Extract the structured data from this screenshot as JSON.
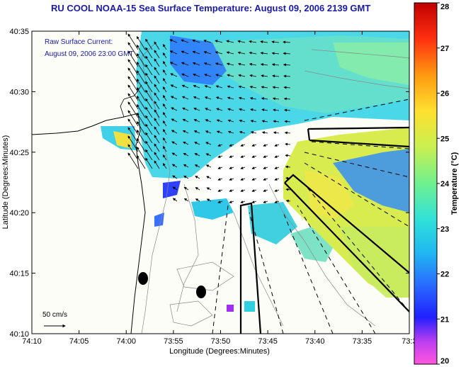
{
  "title": "RU COOL  NOAA-15  Sea Surface Temperature:  August 09, 2006 2139 GMT",
  "current_legend": {
    "line1": "Raw Surface Current:",
    "line2": "August 09, 2006 23:00 GMT"
  },
  "scale_label": "50 cm/s",
  "x_axis": {
    "label": "Longitude (Degrees:Minutes)",
    "ticks": [
      "74:10",
      "74:05",
      "74:00",
      "73:55",
      "73:50",
      "73:45",
      "73:40",
      "73:35",
      "73:3"
    ]
  },
  "y_axis": {
    "label": "Latitude (Degrees:Minutes)",
    "ticks": [
      "40:35",
      "40:30",
      "40:25",
      "40:20",
      "40:15",
      "40:10"
    ]
  },
  "colorbar": {
    "label": "Temperature (°C)",
    "ticks": [
      "28",
      "27",
      "26",
      "25",
      "24",
      "23",
      "22",
      "21",
      "20"
    ],
    "min": 20,
    "max": 28
  },
  "colors": {
    "title": "#1a1aa8",
    "land": "#fdfdf7",
    "coast": "#000000"
  }
}
